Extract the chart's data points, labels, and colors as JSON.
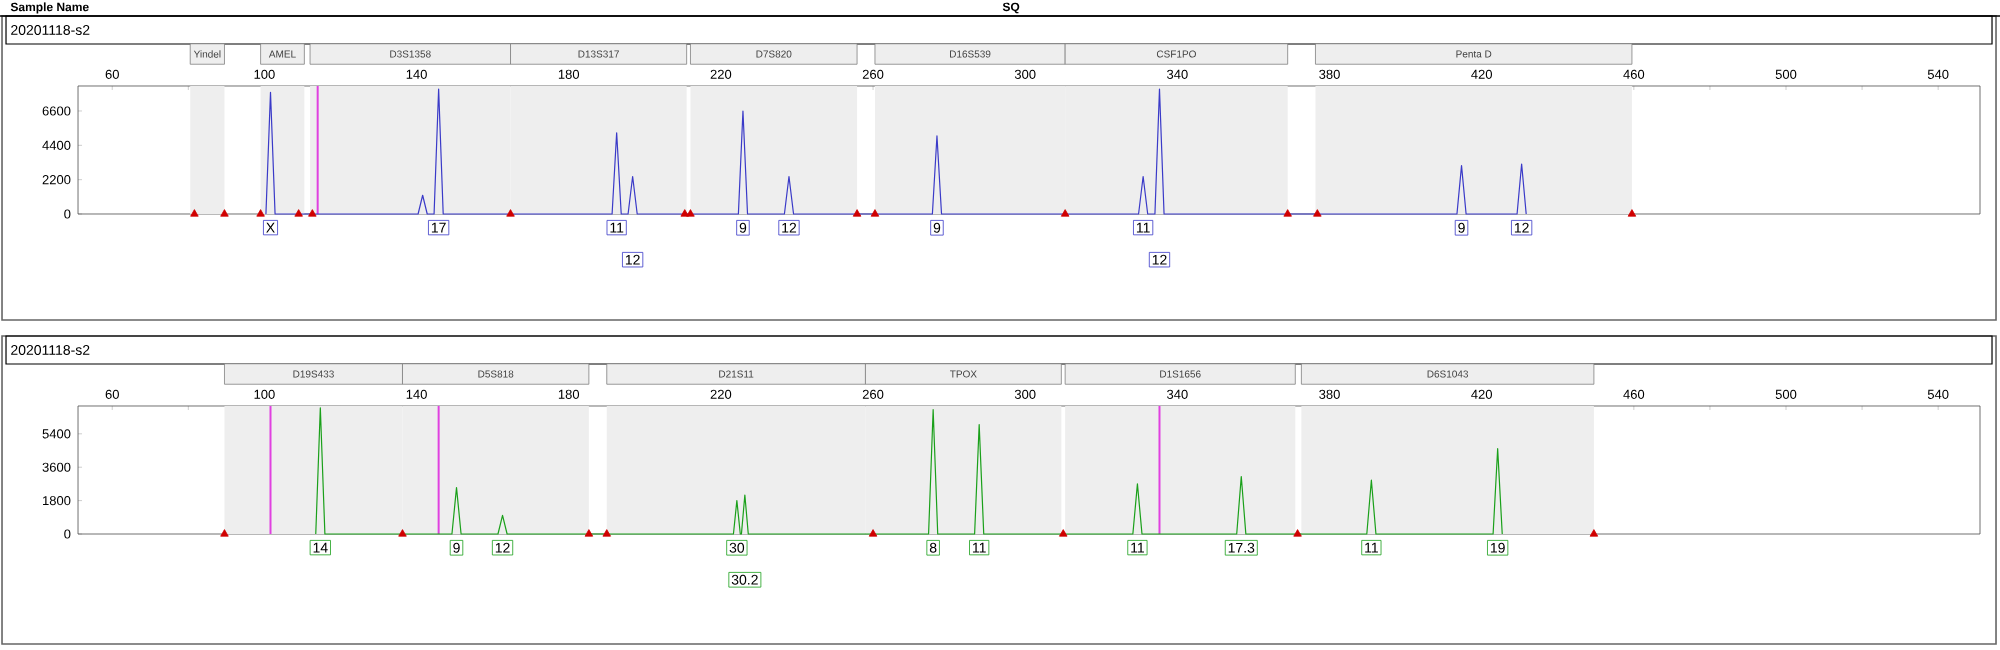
{
  "chart_data": [
    {
      "type": "line",
      "title": "20201118-s2",
      "annotations": [
        "Sample Name",
        "SQ",
        {
          "text": "X",
          "x": 101.6,
          "y": 0
        },
        {
          "text": "17",
          "x": 145.8,
          "y": 0
        },
        {
          "text": "11",
          "x": 192.6,
          "y": 0
        },
        {
          "text": "12",
          "x": 196.8,
          "y": 0
        },
        {
          "text": "9",
          "x": 225.8,
          "y": 0
        },
        {
          "text": "12",
          "x": 237.9,
          "y": 0
        },
        {
          "text": "9",
          "x": 276.8,
          "y": 0
        },
        {
          "text": "11",
          "x": 331.0,
          "y": 0
        },
        {
          "text": "12",
          "x": 335.3,
          "y": 0
        },
        {
          "text": "9",
          "x": 414.7,
          "y": 0
        },
        {
          "text": "12",
          "x": 430.5,
          "y": 0
        }
      ],
      "xlim": [
        51,
        551
      ],
      "ylim": [
        0,
        8200
      ],
      "xticks": [
        60,
        {
          "value": 80,
          "label": null
        },
        100,
        {
          "value": 120,
          "label": null
        },
        140,
        {
          "value": 160,
          "label": null
        },
        180,
        {
          "value": 200,
          "label": null
        },
        220,
        {
          "value": 240,
          "label": null
        },
        260,
        {
          "value": 280,
          "label": null
        },
        300,
        {
          "value": 320,
          "label": null
        },
        340,
        {
          "value": 360,
          "label": null
        },
        380,
        {
          "value": 400,
          "label": null
        },
        420,
        {
          "value": 440,
          "label": null
        },
        460,
        {
          "value": 480,
          "label": null
        },
        500,
        {
          "value": 520,
          "label": null
        },
        540
      ],
      "yticks": [
        0,
        2200,
        4400,
        6600
      ],
      "bands": [
        {
          "axis": "x",
          "from": 80.5,
          "to": 89.5,
          "label": "Yindel"
        },
        {
          "axis": "x",
          "from": 99,
          "to": 110.5,
          "label": "AMEL"
        },
        {
          "axis": "x",
          "from": 112,
          "to": 164.7,
          "label": "D3S1358"
        },
        {
          "axis": "x",
          "from": 164.7,
          "to": 211,
          "label": "D13S317"
        },
        {
          "axis": "x",
          "from": 212,
          "to": 255.8,
          "label": "D7S820"
        },
        {
          "axis": "x",
          "from": 260.5,
          "to": 310.5,
          "label": "D16S539"
        },
        {
          "axis": "x",
          "from": 310.5,
          "to": 369,
          "label": "CSF1PO"
        },
        {
          "axis": "x",
          "from": 376.3,
          "to": 459.5,
          "label": "Penta D"
        }
      ],
      "ref_lines": [
        {
          "axis": "x",
          "value": 114,
          "color": "#e040e0"
        }
      ],
      "series": [
        {
          "type": "line",
          "color": "#3a3ac8",
          "x": [
            100.4,
            101.6,
            102.8,
            140.4,
            141.6,
            142.8,
            144.6,
            145.8,
            147.0,
            191.4,
            192.6,
            193.8,
            195.6,
            196.8,
            198.0,
            224.6,
            225.8,
            227.0,
            236.7,
            237.9,
            239.1,
            275.6,
            276.8,
            278.0,
            329.8,
            331.0,
            332.2,
            334.1,
            335.3,
            336.5,
            413.5,
            414.7,
            415.9,
            429.3,
            430.5,
            431.7
          ],
          "values": [
            0,
            7800,
            0,
            0,
            1200,
            0,
            0,
            8000,
            0,
            0,
            5200,
            0,
            0,
            2400,
            0,
            0,
            6600,
            0,
            0,
            2400,
            0,
            0,
            5000,
            0,
            0,
            2400,
            0,
            0,
            8000,
            0,
            0,
            3100,
            0,
            0,
            3200,
            0
          ]
        },
        {
          "type": "scatter",
          "marker": "triangle",
          "color": "#d00000",
          "x": [
            81.6,
            89.5,
            99,
            109,
            112.6,
            164.7,
            210.5,
            212,
            255.8,
            260.5,
            310.5,
            369,
            376.8,
            459.5
          ],
          "values": [
            0,
            0,
            0,
            0,
            0,
            0,
            0,
            0,
            0,
            0,
            0,
            0,
            0,
            0
          ]
        }
      ]
    },
    {
      "type": "line",
      "title": "20201118-s2",
      "annotations": [
        {
          "text": "14",
          "x": 114.7,
          "y": 0
        },
        {
          "text": "9",
          "x": 150.5,
          "y": 0
        },
        {
          "text": "12",
          "x": 162.6,
          "y": 0
        },
        {
          "text": "30",
          "x": 224.2,
          "y": 0
        },
        {
          "text": "30.2",
          "x": 226.3,
          "y": 0
        },
        {
          "text": "8",
          "x": 275.8,
          "y": 0
        },
        {
          "text": "11",
          "x": 287.9,
          "y": 0
        },
        {
          "text": "11",
          "x": 329.5,
          "y": 0
        },
        {
          "text": "17.3",
          "x": 356.8,
          "y": 0
        },
        {
          "text": "11",
          "x": 391.0,
          "y": 0
        },
        {
          "text": "19",
          "x": 424.2,
          "y": 0
        }
      ],
      "xlim": [
        51,
        551
      ],
      "ylim": [
        0,
        6900
      ],
      "xticks": [
        60,
        {
          "value": 80,
          "label": null
        },
        100,
        {
          "value": 120,
          "label": null
        },
        140,
        {
          "value": 160,
          "label": null
        },
        180,
        {
          "value": 200,
          "label": null
        },
        220,
        {
          "value": 240,
          "label": null
        },
        260,
        {
          "value": 280,
          "label": null
        },
        300,
        {
          "value": 320,
          "label": null
        },
        340,
        {
          "value": 360,
          "label": null
        },
        380,
        {
          "value": 400,
          "label": null
        },
        420,
        {
          "value": 440,
          "label": null
        },
        460,
        {
          "value": 480,
          "label": null
        },
        500,
        {
          "value": 520,
          "label": null
        },
        540
      ],
      "yticks": [
        0,
        1800,
        3600,
        5400
      ],
      "bands": [
        {
          "axis": "x",
          "from": 89.5,
          "to": 136.3,
          "label": "D19S433"
        },
        {
          "axis": "x",
          "from": 136.3,
          "to": 185.3,
          "label": "D5S818"
        },
        {
          "axis": "x",
          "from": 190,
          "to": 258,
          "label": "D21S11"
        },
        {
          "axis": "x",
          "from": 258,
          "to": 309.5,
          "label": "TPOX"
        },
        {
          "axis": "x",
          "from": 310.5,
          "to": 371,
          "label": "D1S1656"
        },
        {
          "axis": "x",
          "from": 372.6,
          "to": 449.5,
          "label": "D6S1043"
        }
      ],
      "ref_lines": [
        {
          "axis": "x",
          "value": 101.6,
          "color": "#e040e0"
        },
        {
          "axis": "x",
          "value": 145.8,
          "color": "#e040e0"
        },
        {
          "axis": "x",
          "value": 335.3,
          "color": "#e040e0"
        }
      ],
      "series": [
        {
          "type": "line",
          "color": "#1aa01a",
          "x": [
            113.5,
            114.7,
            115.9,
            149.3,
            150.5,
            151.7,
            161.4,
            162.6,
            163.8,
            223.3,
            224.2,
            225.1,
            225.4,
            226.3,
            227.2,
            274.6,
            275.8,
            277.0,
            286.7,
            287.9,
            289.1,
            328.3,
            329.5,
            330.7,
            355.6,
            356.8,
            358.0,
            389.8,
            391.0,
            392.2,
            423.0,
            424.2,
            425.4
          ],
          "values": [
            0,
            6800,
            0,
            0,
            2500,
            0,
            0,
            1000,
            0,
            0,
            1800,
            0,
            0,
            2100,
            0,
            0,
            6700,
            0,
            0,
            5900,
            0,
            0,
            2700,
            0,
            0,
            3100,
            0,
            0,
            2900,
            0,
            0,
            4600,
            0
          ]
        },
        {
          "type": "scatter",
          "marker": "triangle",
          "color": "#d00000",
          "x": [
            89.5,
            136.3,
            185.3,
            190,
            260,
            310,
            371.6,
            449.5
          ],
          "values": [
            0,
            0,
            0,
            0,
            0,
            0,
            0,
            0
          ]
        }
      ]
    }
  ]
}
